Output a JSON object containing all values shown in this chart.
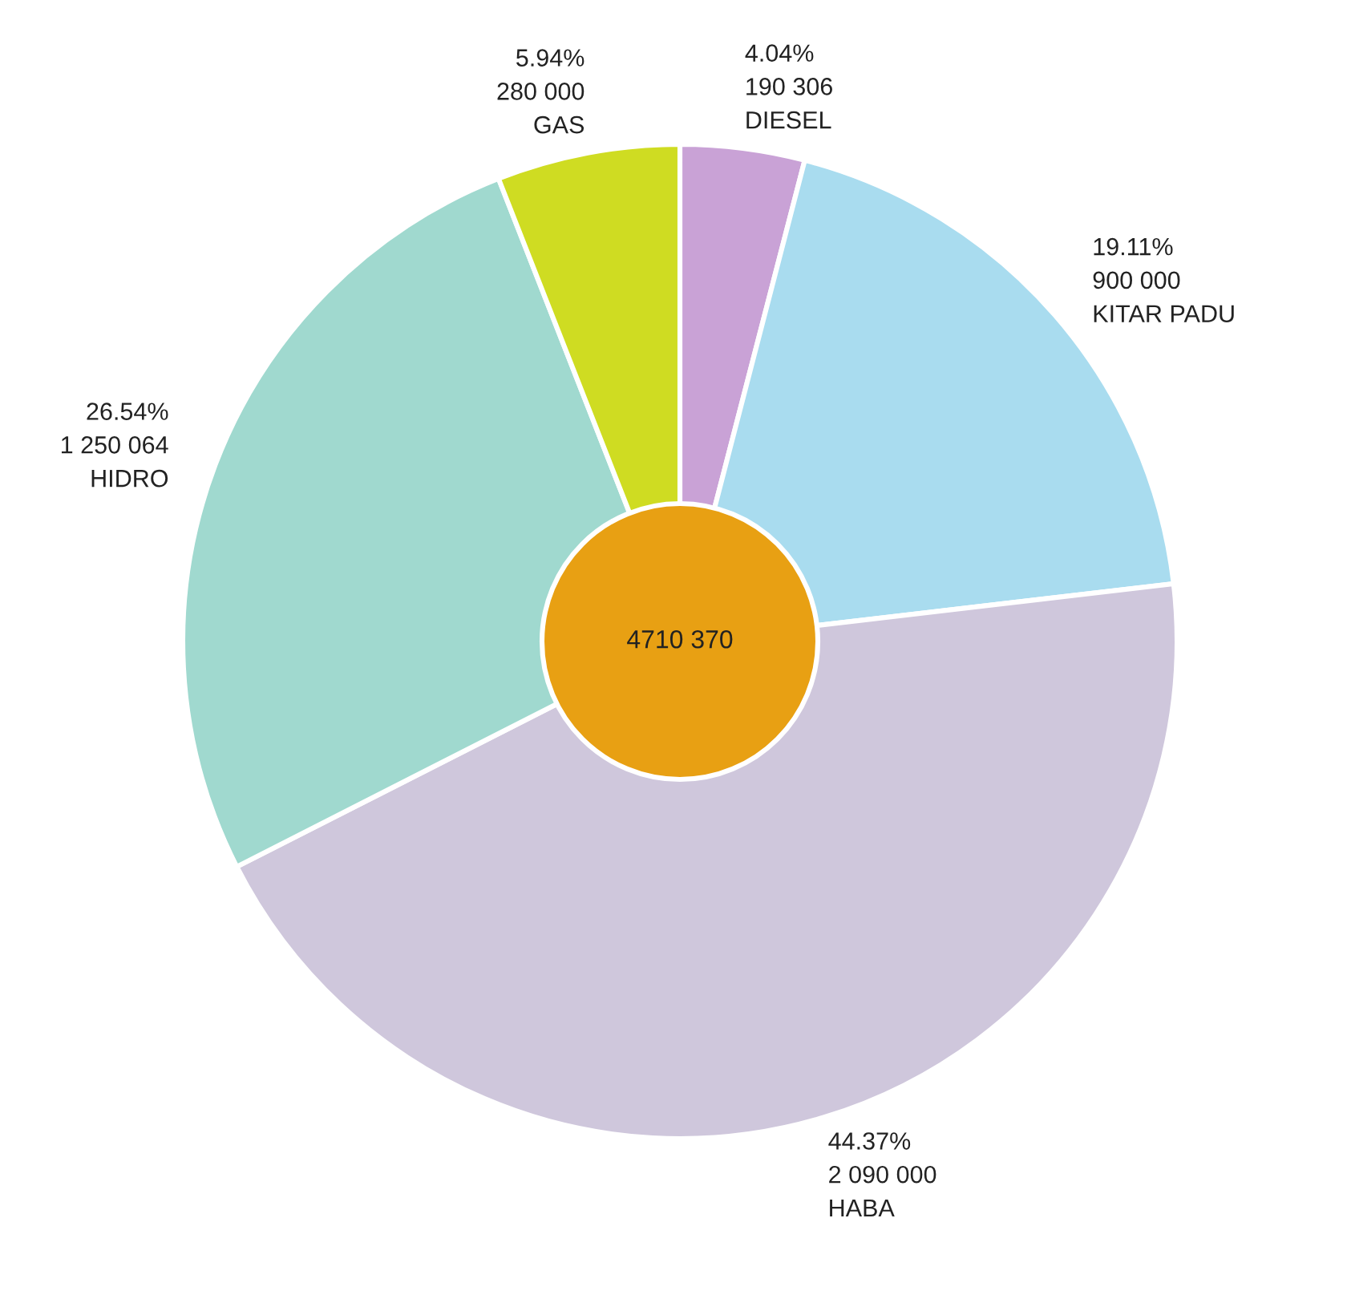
{
  "chart_data": {
    "type": "donut",
    "categories": [
      "DIESEL",
      "KITAR PADU",
      "HABA",
      "HIDRO",
      "GAS"
    ],
    "values": [
      190306,
      900000,
      2090000,
      1250064,
      280000
    ],
    "colors": [
      "#c9a2d6",
      "#a9dcef",
      "#cfc7dc",
      "#a0d9cf",
      "#cfdc22"
    ],
    "value_labels": [
      "4.04%\n190 306",
      "19.11%\n900 000",
      "44.37%\n2 090 000",
      "26.54%\n1 250 064",
      "5.94%\n280 000"
    ],
    "annotations": [
      "4710 370"
    ],
    "legend": false
  }
}
